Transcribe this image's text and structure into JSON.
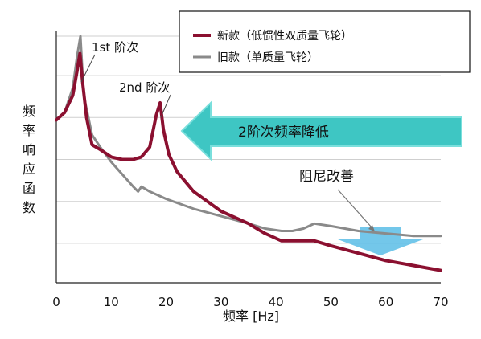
{
  "chart_data": {
    "type": "line",
    "xlabel": "频率 [Hz]",
    "ylabel": "频率响应函数",
    "xlim": [
      0,
      70
    ],
    "xticks": [
      0,
      10,
      20,
      30,
      40,
      50,
      60,
      70
    ],
    "grid": "horizontal",
    "legend_position": "top-right",
    "series": [
      {
        "name": "新款（低惯性双质量飞轮）",
        "color": "#8b1030",
        "x": [
          0,
          1.5,
          3,
          3.8,
          4.3,
          4.8,
          5.5,
          6.5,
          8,
          10,
          12,
          14,
          15.5,
          17,
          18.2,
          18.9,
          19.5,
          20.5,
          22,
          25,
          30,
          35,
          38,
          41,
          43,
          45,
          47,
          50,
          55,
          60,
          65,
          70
        ],
        "y": [
          0.66,
          0.69,
          0.76,
          0.86,
          0.93,
          0.81,
          0.67,
          0.56,
          0.54,
          0.51,
          0.5,
          0.5,
          0.51,
          0.55,
          0.68,
          0.73,
          0.62,
          0.52,
          0.45,
          0.37,
          0.29,
          0.24,
          0.2,
          0.17,
          0.17,
          0.17,
          0.17,
          0.15,
          0.12,
          0.09,
          0.07,
          0.05
        ]
      },
      {
        "name": "旧款（单质量飞轮）",
        "color": "#8a8a8a",
        "x": [
          0,
          1.5,
          3,
          3.8,
          4.4,
          5,
          6.5,
          8,
          10,
          12,
          14,
          14.9,
          15.5,
          17,
          20,
          25,
          30,
          35,
          38,
          41,
          43,
          45,
          47,
          50,
          55,
          60,
          65,
          70
        ],
        "y": [
          0.66,
          0.69,
          0.79,
          0.92,
          1.0,
          0.76,
          0.6,
          0.55,
          0.49,
          0.44,
          0.39,
          0.37,
          0.39,
          0.37,
          0.34,
          0.3,
          0.27,
          0.24,
          0.22,
          0.21,
          0.21,
          0.22,
          0.24,
          0.23,
          0.21,
          0.2,
          0.19,
          0.19
        ]
      }
    ],
    "annotations": [
      {
        "id": "peak1",
        "text": "1st 阶次"
      },
      {
        "id": "peak2",
        "text": "2nd 阶次"
      },
      {
        "id": "shift",
        "text": "2阶次频率降低"
      },
      {
        "id": "damping",
        "text": "阻尼改善"
      }
    ]
  },
  "colors": {
    "new_series": "#8b1030",
    "old_series": "#8a8a8a",
    "big_arrow": "#3ec6c3",
    "big_arrow_edge": "#7adfdc",
    "small_arrow": "#5bbde6"
  }
}
